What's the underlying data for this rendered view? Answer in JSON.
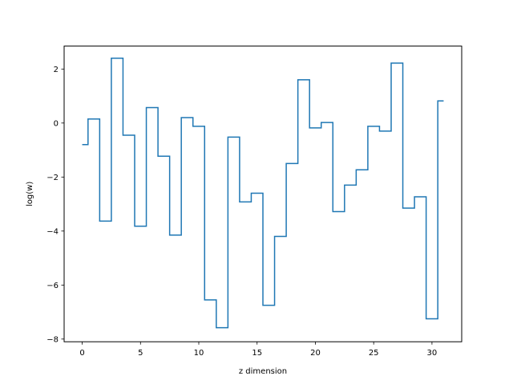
{
  "chart_data": {
    "type": "line",
    "drawstyle": "steps-mid",
    "title": "",
    "xlabel": "z dimension",
    "ylabel": "log(w)",
    "xlim": [
      -1.55,
      32.55
    ],
    "ylim": [
      -8.1,
      2.85
    ],
    "xticks": [
      0,
      5,
      10,
      15,
      20,
      25,
      30
    ],
    "yticks": [
      -8,
      -6,
      -4,
      -2,
      0,
      2
    ],
    "grid": false,
    "legend": "none",
    "series": [
      {
        "color": "#1f77b4",
        "x": [
          0,
          1,
          2,
          3,
          4,
          5,
          6,
          7,
          8,
          9,
          10,
          11,
          12,
          13,
          14,
          15,
          16,
          17,
          18,
          19,
          20,
          21,
          22,
          23,
          24,
          25,
          26,
          27,
          28,
          29,
          30,
          31
        ],
        "y": [
          -0.8,
          0.15,
          -3.63,
          2.4,
          -0.45,
          -3.82,
          0.57,
          -1.23,
          -4.15,
          0.2,
          -0.12,
          -6.55,
          -7.58,
          -0.52,
          -2.92,
          -2.6,
          -6.75,
          -4.2,
          -1.5,
          1.6,
          -0.18,
          0.02,
          -3.28,
          -2.3,
          -1.73,
          -0.12,
          -0.3,
          2.22,
          -3.15,
          -2.73,
          -7.25,
          0.82
        ]
      }
    ]
  }
}
